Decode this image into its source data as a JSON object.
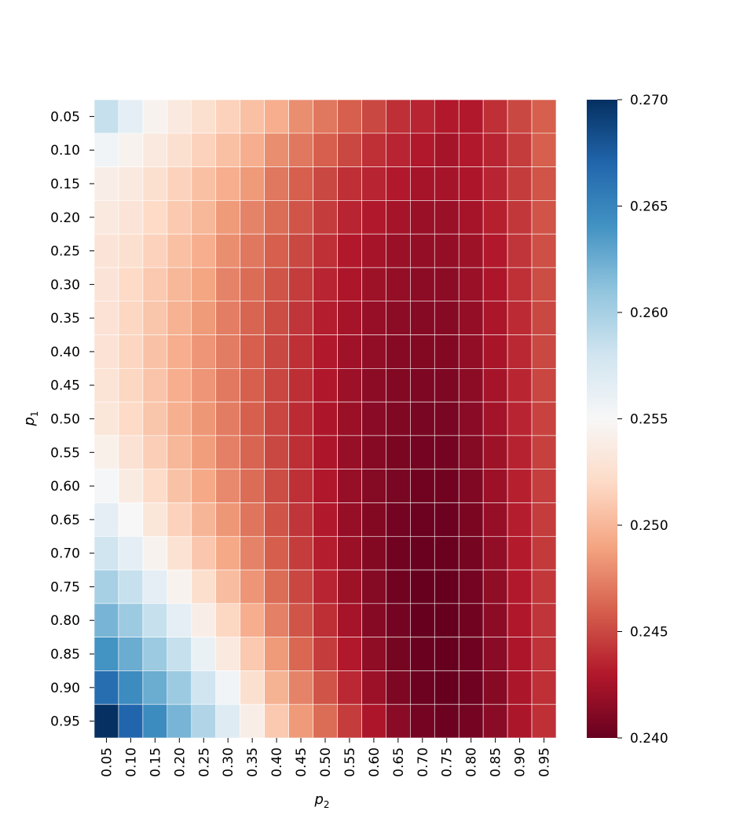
{
  "chart_data": {
    "type": "heatmap",
    "title": "",
    "xlabel": "p",
    "xlabel_sub": "2",
    "ylabel": "p",
    "ylabel_sub": "1",
    "x_categories": [
      "0.05",
      "0.10",
      "0.15",
      "0.20",
      "0.25",
      "0.30",
      "0.35",
      "0.40",
      "0.45",
      "0.50",
      "0.55",
      "0.60",
      "0.65",
      "0.70",
      "0.75",
      "0.80",
      "0.85",
      "0.90",
      "0.95"
    ],
    "y_categories": [
      "0.05",
      "0.10",
      "0.15",
      "0.20",
      "0.25",
      "0.30",
      "0.35",
      "0.40",
      "0.45",
      "0.50",
      "0.55",
      "0.60",
      "0.65",
      "0.70",
      "0.75",
      "0.80",
      "0.85",
      "0.90",
      "0.95"
    ],
    "values": [
      [
        0.2585,
        0.2565,
        0.2545,
        0.2535,
        0.2525,
        0.2515,
        0.2505,
        0.2495,
        0.248,
        0.247,
        0.246,
        0.245,
        0.244,
        0.2435,
        0.243,
        0.243,
        0.244,
        0.245,
        0.246
      ],
      [
        0.2555,
        0.2545,
        0.2535,
        0.2525,
        0.2515,
        0.2505,
        0.2495,
        0.248,
        0.247,
        0.246,
        0.245,
        0.244,
        0.2435,
        0.243,
        0.2425,
        0.243,
        0.2435,
        0.2445,
        0.246
      ],
      [
        0.254,
        0.2535,
        0.2525,
        0.2515,
        0.2505,
        0.2495,
        0.2485,
        0.247,
        0.246,
        0.245,
        0.244,
        0.2435,
        0.243,
        0.2425,
        0.2425,
        0.2428,
        0.2435,
        0.2445,
        0.2455
      ],
      [
        0.2535,
        0.253,
        0.252,
        0.251,
        0.25,
        0.2485,
        0.2475,
        0.2465,
        0.2455,
        0.2445,
        0.2435,
        0.243,
        0.2425,
        0.242,
        0.242,
        0.2425,
        0.2433,
        0.2443,
        0.2455
      ],
      [
        0.253,
        0.2525,
        0.2515,
        0.2505,
        0.2495,
        0.248,
        0.247,
        0.246,
        0.245,
        0.244,
        0.243,
        0.2425,
        0.242,
        0.2418,
        0.2418,
        0.2422,
        0.243,
        0.2442,
        0.2453
      ],
      [
        0.253,
        0.252,
        0.251,
        0.25,
        0.249,
        0.2475,
        0.2465,
        0.2455,
        0.2445,
        0.2435,
        0.2428,
        0.2422,
        0.2418,
        0.2415,
        0.2415,
        0.242,
        0.2428,
        0.244,
        0.2452
      ],
      [
        0.2528,
        0.2518,
        0.2508,
        0.2497,
        0.2485,
        0.2473,
        0.2462,
        0.2452,
        0.2442,
        0.2432,
        0.2425,
        0.2419,
        0.2415,
        0.2413,
        0.2413,
        0.2418,
        0.2427,
        0.2438,
        0.245
      ],
      [
        0.2528,
        0.2517,
        0.2506,
        0.2495,
        0.2483,
        0.2472,
        0.246,
        0.245,
        0.244,
        0.243,
        0.2423,
        0.2417,
        0.2413,
        0.2411,
        0.2411,
        0.2417,
        0.2426,
        0.2437,
        0.245
      ],
      [
        0.2529,
        0.2518,
        0.2507,
        0.2495,
        0.2483,
        0.2471,
        0.246,
        0.2449,
        0.2439,
        0.2429,
        0.2421,
        0.2415,
        0.2411,
        0.2409,
        0.2409,
        0.2415,
        0.2425,
        0.2436,
        0.2449
      ],
      [
        0.2532,
        0.252,
        0.2508,
        0.2496,
        0.2484,
        0.2472,
        0.246,
        0.2449,
        0.2438,
        0.2428,
        0.242,
        0.2414,
        0.241,
        0.2407,
        0.2407,
        0.2414,
        0.2424,
        0.2435,
        0.2448
      ],
      [
        0.2542,
        0.2528,
        0.2513,
        0.25,
        0.2487,
        0.2474,
        0.2462,
        0.245,
        0.2439,
        0.2428,
        0.2419,
        0.2413,
        0.2408,
        0.2405,
        0.2405,
        0.2412,
        0.2422,
        0.2434,
        0.2447
      ],
      [
        0.2552,
        0.2537,
        0.2521,
        0.2506,
        0.2492,
        0.2478,
        0.2465,
        0.2452,
        0.244,
        0.2429,
        0.2419,
        0.2412,
        0.2407,
        0.2404,
        0.2404,
        0.241,
        0.2421,
        0.2433,
        0.2446
      ],
      [
        0.2565,
        0.255,
        0.2532,
        0.2515,
        0.2499,
        0.2484,
        0.2469,
        0.2455,
        0.2442,
        0.243,
        0.2419,
        0.2411,
        0.2405,
        0.2402,
        0.2402,
        0.2408,
        0.2419,
        0.2432,
        0.2445
      ],
      [
        0.258,
        0.2565,
        0.2545,
        0.2527,
        0.2509,
        0.2492,
        0.2475,
        0.2459,
        0.2445,
        0.2432,
        0.242,
        0.2411,
        0.2404,
        0.2401,
        0.2401,
        0.2406,
        0.2417,
        0.2431,
        0.2444
      ],
      [
        0.26,
        0.2585,
        0.2565,
        0.2545,
        0.2524,
        0.2503,
        0.2483,
        0.2465,
        0.2449,
        0.2435,
        0.2422,
        0.2412,
        0.2404,
        0.24,
        0.24,
        0.2405,
        0.2416,
        0.243,
        0.2443
      ],
      [
        0.262,
        0.2605,
        0.2585,
        0.2565,
        0.254,
        0.2518,
        0.2495,
        0.2474,
        0.2455,
        0.2439,
        0.2425,
        0.2413,
        0.2405,
        0.24,
        0.2399,
        0.2404,
        0.2415,
        0.2429,
        0.2442
      ],
      [
        0.264,
        0.2625,
        0.2605,
        0.2585,
        0.256,
        0.2535,
        0.251,
        0.2485,
        0.2463,
        0.2445,
        0.243,
        0.2416,
        0.2406,
        0.2401,
        0.2399,
        0.2403,
        0.2414,
        0.2428,
        0.2441
      ],
      [
        0.2665,
        0.2645,
        0.2625,
        0.2605,
        0.258,
        0.2555,
        0.2525,
        0.2498,
        0.2475,
        0.2455,
        0.2437,
        0.2421,
        0.2409,
        0.2402,
        0.24,
        0.2403,
        0.2413,
        0.2427,
        0.244
      ],
      [
        0.27,
        0.267,
        0.2645,
        0.262,
        0.2595,
        0.257,
        0.254,
        0.251,
        0.2485,
        0.2465,
        0.2445,
        0.2428,
        0.2414,
        0.2405,
        0.2402,
        0.2405,
        0.2414,
        0.2427,
        0.244
      ]
    ],
    "vmin": 0.24,
    "vmax": 0.27,
    "colormap": "RdBu",
    "colorbar_ticks": [
      "0.240",
      "0.245",
      "0.250",
      "0.255",
      "0.260",
      "0.265",
      "0.270"
    ],
    "grid": true
  }
}
